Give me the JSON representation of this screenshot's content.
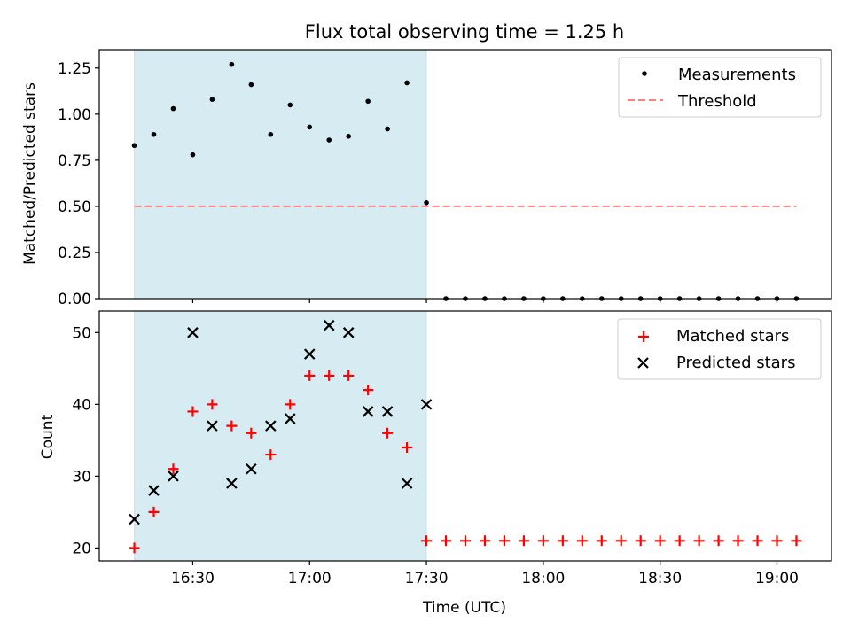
{
  "chart_data": [
    {
      "type": "scatter",
      "title": "Flux total observing time = 1.25 h",
      "xlabel": "",
      "ylabel": "Matched/Predicted stars",
      "xlim_minutes": [
        966,
        1154
      ],
      "ylim": [
        0,
        1.35
      ],
      "yticks": [
        0,
        0.25,
        0.5,
        0.75,
        1.0,
        1.25
      ],
      "ytick_labels": [
        "0.00",
        "0.25",
        "0.50",
        "0.75",
        "1.00",
        "1.25"
      ],
      "shaded_interval_minutes": [
        975,
        1050
      ],
      "series": [
        {
          "name": "Measurements",
          "color": "#000000",
          "marker": "dot",
          "x_minutes": [
            975,
            980,
            985,
            990,
            995,
            1000,
            1005,
            1010,
            1015,
            1020,
            1025,
            1030,
            1035,
            1040,
            1045,
            1050,
            1055,
            1060,
            1065,
            1070,
            1075,
            1080,
            1085,
            1090,
            1095,
            1100,
            1105,
            1110,
            1115,
            1120,
            1125,
            1130,
            1135,
            1140,
            1145
          ],
          "values": [
            0.83,
            0.89,
            1.03,
            0.78,
            1.08,
            1.27,
            1.16,
            0.89,
            1.05,
            0.93,
            0.86,
            0.88,
            1.07,
            0.92,
            1.17,
            0.52,
            0,
            0,
            0,
            0,
            0,
            0,
            0,
            0,
            0,
            0,
            0,
            0,
            0,
            0,
            0,
            0,
            0,
            0,
            0
          ]
        },
        {
          "name": "Threshold",
          "color": "#ff7f7f",
          "marker": "dashed-line",
          "x_minutes": [
            975,
            1145
          ],
          "values": [
            0.5,
            0.5
          ]
        }
      ],
      "legend_position": "upper right"
    },
    {
      "type": "scatter",
      "title": "",
      "xlabel": "Time (UTC)",
      "ylabel": "Count",
      "xlim_minutes": [
        966,
        1154
      ],
      "ylim": [
        18.2,
        53
      ],
      "yticks": [
        20,
        30,
        40,
        50
      ],
      "ytick_labels": [
        "20",
        "30",
        "40",
        "50"
      ],
      "xticks_minutes": [
        990,
        1020,
        1050,
        1080,
        1110,
        1140
      ],
      "xtick_labels": [
        "16:30",
        "17:00",
        "17:30",
        "18:00",
        "18:30",
        "19:00"
      ],
      "shaded_interval_minutes": [
        975,
        1050
      ],
      "series": [
        {
          "name": "Matched stars",
          "color": "#ff0000",
          "marker": "plus",
          "x_minutes": [
            975,
            980,
            985,
            990,
            995,
            1000,
            1005,
            1010,
            1015,
            1020,
            1025,
            1030,
            1035,
            1040,
            1045,
            1050,
            1055,
            1060,
            1065,
            1070,
            1075,
            1080,
            1085,
            1090,
            1095,
            1100,
            1105,
            1110,
            1115,
            1120,
            1125,
            1130,
            1135,
            1140,
            1145
          ],
          "values": [
            20,
            25,
            31,
            39,
            40,
            37,
            36,
            33,
            40,
            44,
            44,
            44,
            42,
            36,
            34,
            21,
            21,
            21,
            21,
            21,
            21,
            21,
            21,
            21,
            21,
            21,
            21,
            21,
            21,
            21,
            21,
            21,
            21,
            21,
            21
          ]
        },
        {
          "name": "Predicted stars",
          "color": "#000000",
          "marker": "x",
          "x_minutes": [
            975,
            980,
            985,
            990,
            995,
            1000,
            1005,
            1010,
            1015,
            1020,
            1025,
            1030,
            1035,
            1040,
            1045,
            1050
          ],
          "values": [
            24,
            28,
            30,
            50,
            37,
            29,
            31,
            37,
            38,
            47,
            51,
            50,
            39,
            39,
            29,
            40
          ]
        }
      ],
      "legend_position": "upper right"
    }
  ]
}
